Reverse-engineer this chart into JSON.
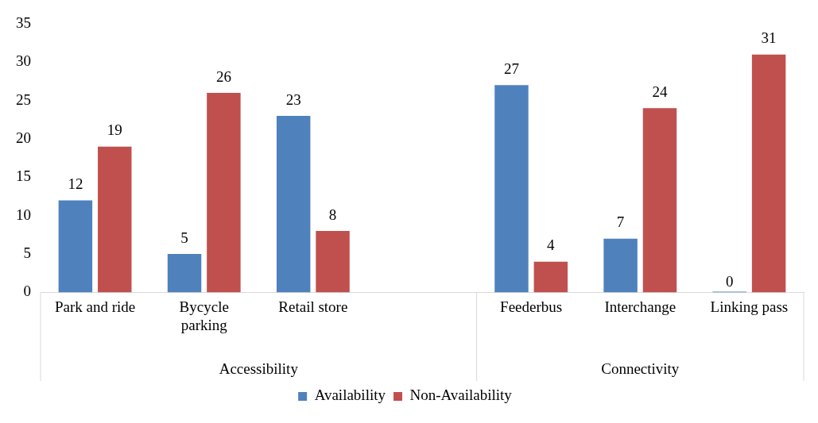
{
  "chart_data": {
    "type": "bar",
    "categories": [
      "Park and ride",
      "Bycycle parking",
      "Retail store",
      null,
      "Feederbus",
      "Interchange",
      "Linking pass"
    ],
    "series": [
      {
        "name": "Availability",
        "color": "#4f81bd",
        "values": [
          12,
          5,
          23,
          null,
          27,
          7,
          0
        ]
      },
      {
        "name": "Non-Availability",
        "color": "#c0504d",
        "values": [
          19,
          26,
          8,
          null,
          4,
          24,
          31
        ]
      }
    ],
    "annotations": [
      "Accessibility",
      "Connectivity"
    ],
    "ylim": [
      0,
      35
    ],
    "yticks": [
      0,
      5,
      10,
      15,
      20,
      25,
      30,
      35
    ],
    "data_labels": true,
    "grid": false,
    "legend": "bottom"
  }
}
